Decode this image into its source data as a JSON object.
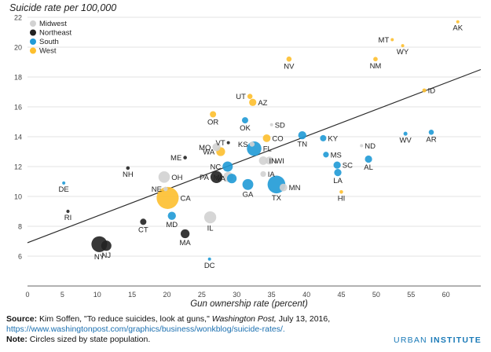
{
  "chart_data": {
    "type": "scatter",
    "title": "Suicide rate per 100,000",
    "xlabel": "Gun ownership rate (percent)",
    "ylabel": "",
    "xlim": [
      0,
      65
    ],
    "ylim": [
      4,
      22
    ],
    "x_ticks": [
      0,
      5,
      10,
      15,
      20,
      25,
      30,
      35,
      40,
      45,
      50,
      55,
      60
    ],
    "y_ticks": [
      6,
      8,
      10,
      12,
      14,
      16,
      18,
      20,
      22
    ],
    "grid": true,
    "legend_position": "top-left",
    "legend": [
      {
        "name": "Midwest",
        "color": "#d2d2d2"
      },
      {
        "name": "Northeast",
        "color": "#222222"
      },
      {
        "name": "South",
        "color": "#1f9ad6"
      },
      {
        "name": "West",
        "color": "#fdbf2d"
      }
    ],
    "trendline": {
      "x": [
        0,
        65
      ],
      "y": [
        6.9,
        18.5
      ]
    },
    "points": [
      {
        "label": "AK",
        "x": 61.7,
        "y": 21.7,
        "region": "West",
        "size": 0.05
      },
      {
        "label": "MT",
        "x": 52.3,
        "y": 20.5,
        "region": "West",
        "size": 0.07
      },
      {
        "label": "WY",
        "x": 53.8,
        "y": 20.1,
        "region": "West",
        "size": 0.05
      },
      {
        "label": "NV",
        "x": 37.5,
        "y": 19.2,
        "region": "West",
        "size": 0.2
      },
      {
        "label": "NM",
        "x": 49.9,
        "y": 19.2,
        "region": "West",
        "size": 0.15
      },
      {
        "label": "ID",
        "x": 56.9,
        "y": 17.1,
        "region": "West",
        "size": 0.12
      },
      {
        "label": "UT",
        "x": 31.9,
        "y": 16.7,
        "region": "West",
        "size": 0.2
      },
      {
        "label": "AZ",
        "x": 32.3,
        "y": 16.3,
        "region": "West",
        "size": 0.4
      },
      {
        "label": "OR",
        "x": 26.6,
        "y": 15.5,
        "region": "West",
        "size": 0.3
      },
      {
        "label": "SD",
        "x": 35.0,
        "y": 14.8,
        "region": "Midwest",
        "size": 0.06
      },
      {
        "label": "OK",
        "x": 31.2,
        "y": 15.1,
        "region": "South",
        "size": 0.3
      },
      {
        "label": "AR",
        "x": 57.9,
        "y": 14.3,
        "region": "South",
        "size": 0.2
      },
      {
        "label": "WV",
        "x": 54.2,
        "y": 14.2,
        "region": "South",
        "size": 0.12
      },
      {
        "label": "TN",
        "x": 39.4,
        "y": 14.1,
        "region": "South",
        "size": 0.5
      },
      {
        "label": "KY",
        "x": 42.4,
        "y": 13.9,
        "region": "South",
        "size": 0.3
      },
      {
        "label": "ND",
        "x": 47.9,
        "y": 13.4,
        "region": "Midwest",
        "size": 0.05
      },
      {
        "label": "CO",
        "x": 34.3,
        "y": 13.9,
        "region": "West",
        "size": 0.45
      },
      {
        "label": "VT",
        "x": 28.8,
        "y": 13.6,
        "region": "Northeast",
        "size": 0.05
      },
      {
        "label": "KS",
        "x": 32.2,
        "y": 13.5,
        "region": "Midwest",
        "size": 0.2
      },
      {
        "label": "FL",
        "x": 32.5,
        "y": 13.2,
        "region": "South",
        "size": 1.6
      },
      {
        "label": "MO",
        "x": 27.1,
        "y": 13.3,
        "region": "Midwest",
        "size": 0.5
      },
      {
        "label": "WA",
        "x": 27.7,
        "y": 13.0,
        "region": "West",
        "size": 0.6
      },
      {
        "label": "ME",
        "x": 22.6,
        "y": 12.6,
        "region": "Northeast",
        "size": 0.1
      },
      {
        "label": "MS",
        "x": 42.8,
        "y": 12.8,
        "region": "South",
        "size": 0.25
      },
      {
        "label": "SC",
        "x": 44.4,
        "y": 12.1,
        "region": "South",
        "size": 0.4
      },
      {
        "label": "NC",
        "x": 28.7,
        "y": 12.0,
        "region": "South",
        "size": 0.8
      },
      {
        "label": "IN",
        "x": 33.8,
        "y": 12.4,
        "region": "Midwest",
        "size": 0.55
      },
      {
        "label": "WI",
        "x": 34.7,
        "y": 12.4,
        "region": "Midwest",
        "size": 0.5
      },
      {
        "label": "AL",
        "x": 48.9,
        "y": 12.5,
        "region": "South",
        "size": 0.4
      },
      {
        "label": "NH",
        "x": 14.4,
        "y": 11.9,
        "region": "Northeast",
        "size": 0.1
      },
      {
        "label": "OH",
        "x": 19.6,
        "y": 11.3,
        "region": "Midwest",
        "size": 1.0
      },
      {
        "label": "PA",
        "x": 27.1,
        "y": 11.3,
        "region": "Northeast",
        "size": 1.1
      },
      {
        "label": "MI",
        "x": 28.8,
        "y": 11.3,
        "region": "Midwest",
        "size": 0.8
      },
      {
        "label": "VA",
        "x": 29.3,
        "y": 11.2,
        "region": "South",
        "size": 0.7
      },
      {
        "label": "IA",
        "x": 33.8,
        "y": 11.5,
        "region": "Midwest",
        "size": 0.25
      },
      {
        "label": "LA",
        "x": 44.5,
        "y": 11.6,
        "region": "South",
        "size": 0.4
      },
      {
        "label": "GA",
        "x": 31.6,
        "y": 10.8,
        "region": "South",
        "size": 0.9
      },
      {
        "label": "TX",
        "x": 35.7,
        "y": 10.8,
        "region": "South",
        "size": 2.4
      },
      {
        "label": "MN",
        "x": 36.7,
        "y": 10.6,
        "region": "Midwest",
        "size": 0.45
      },
      {
        "label": "HI",
        "x": 45.0,
        "y": 10.3,
        "region": "West",
        "size": 0.1
      },
      {
        "label": "DE",
        "x": 5.2,
        "y": 10.9,
        "region": "South",
        "size": 0.08
      },
      {
        "label": "NE",
        "x": 19.8,
        "y": 10.5,
        "region": "Midwest",
        "size": 0.15
      },
      {
        "label": "CA",
        "x": 20.1,
        "y": 9.9,
        "region": "West",
        "size": 3.7
      },
      {
        "label": "RI",
        "x": 5.8,
        "y": 9.0,
        "region": "Northeast",
        "size": 0.08
      },
      {
        "label": "IL",
        "x": 26.2,
        "y": 8.6,
        "region": "Midwest",
        "size": 1.1
      },
      {
        "label": "MD",
        "x": 20.7,
        "y": 8.7,
        "region": "South",
        "size": 0.5
      },
      {
        "label": "CT",
        "x": 16.6,
        "y": 8.3,
        "region": "Northeast",
        "size": 0.3
      },
      {
        "label": "MA",
        "x": 22.6,
        "y": 7.5,
        "region": "Northeast",
        "size": 0.6
      },
      {
        "label": "NJ",
        "x": 11.3,
        "y": 6.7,
        "region": "Northeast",
        "size": 0.8
      },
      {
        "label": "NY",
        "x": 10.3,
        "y": 6.8,
        "region": "Northeast",
        "size": 1.9
      },
      {
        "label": "DC",
        "x": 26.1,
        "y": 5.8,
        "region": "South",
        "size": 0.05
      }
    ]
  },
  "footer": {
    "source_label": "Source:",
    "source_text": "Kim Soffen, \"To reduce suicides, look at guns,\"",
    "source_pub": "Washington Post,",
    "source_date": "July 13, 2016,",
    "source_url": "https://www.washingtonpost.com/graphics/business/wonkblog/suicide-rates/.",
    "note_label": "Note:",
    "note_text": "Circles sized by state population."
  },
  "brand": {
    "part1": "URBAN",
    "part2": "INSTITUTE"
  }
}
